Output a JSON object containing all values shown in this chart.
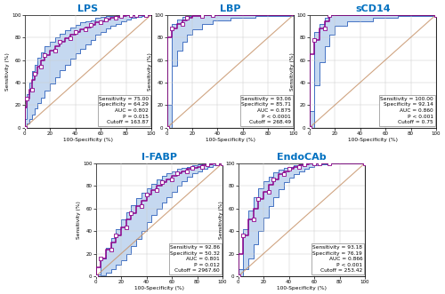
{
  "panels": [
    {
      "title": "LPS",
      "stats_text": "Sensitivity = 75.00\nSpecificity = 64.29\nAUC = 0.802\nP = 0.015\nCutoff = 163.87",
      "roc_x": [
        0,
        0,
        2,
        2,
        4,
        4,
        6,
        6,
        8,
        8,
        10,
        10,
        13,
        13,
        16,
        16,
        20,
        20,
        24,
        24,
        28,
        28,
        32,
        32,
        36,
        36,
        40,
        40,
        44,
        44,
        48,
        48,
        52,
        52,
        56,
        56,
        60,
        60,
        64,
        64,
        68,
        68,
        72,
        72,
        76,
        76,
        80,
        80,
        84,
        84,
        88,
        88,
        92,
        92,
        96,
        96,
        100
      ],
      "roc_y": [
        0,
        18,
        18,
        26,
        26,
        34,
        34,
        42,
        42,
        48,
        48,
        54,
        54,
        60,
        60,
        64,
        64,
        68,
        68,
        72,
        72,
        76,
        76,
        79,
        79,
        82,
        82,
        85,
        85,
        87,
        87,
        89,
        89,
        91,
        91,
        93,
        93,
        94,
        94,
        96,
        96,
        97,
        97,
        98,
        98,
        99,
        99,
        100,
        100,
        100,
        100,
        100,
        100,
        100,
        100,
        100,
        100
      ],
      "ci_upper_x": [
        0,
        2,
        4,
        6,
        8,
        10,
        13,
        16,
        20,
        24,
        28,
        32,
        36,
        40,
        44,
        48,
        52,
        56,
        60,
        64,
        68,
        72,
        76,
        80,
        84,
        88,
        92,
        96,
        100
      ],
      "ci_upper_y": [
        8,
        30,
        40,
        50,
        56,
        62,
        67,
        72,
        76,
        80,
        83,
        86,
        89,
        91,
        93,
        94,
        95,
        97,
        98,
        99,
        99,
        100,
        100,
        100,
        100,
        100,
        100,
        100,
        100
      ],
      "ci_lower_x": [
        0,
        2,
        4,
        6,
        8,
        10,
        13,
        16,
        20,
        24,
        28,
        32,
        36,
        40,
        44,
        48,
        52,
        56,
        60,
        64,
        68,
        72,
        76,
        80,
        84,
        88,
        92,
        96,
        100
      ],
      "ci_lower_y": [
        0,
        4,
        8,
        12,
        17,
        22,
        27,
        33,
        39,
        45,
        51,
        56,
        61,
        66,
        70,
        74,
        78,
        82,
        85,
        88,
        90,
        92,
        94,
        96,
        97,
        98,
        99,
        100,
        100
      ]
    },
    {
      "title": "LBP",
      "stats_text": "Sensitivity = 93.06\nSpecificity = 85.71\nAUC = 0.875\nP < 0.0001\nCutoff = 268.49",
      "roc_x": [
        0,
        0,
        4,
        4,
        8,
        8,
        12,
        12,
        16,
        16,
        20,
        20,
        28,
        28,
        36,
        36,
        100,
        100
      ],
      "roc_y": [
        0,
        80,
        80,
        88,
        88,
        92,
        92,
        95,
        95,
        97,
        97,
        99,
        99,
        100,
        100,
        100,
        100,
        100
      ],
      "ci_upper_x": [
        0,
        4,
        8,
        12,
        16,
        20,
        28,
        36,
        100
      ],
      "ci_upper_y": [
        20,
        92,
        96,
        98,
        99,
        100,
        100,
        100,
        100
      ],
      "ci_lower_x": [
        0,
        4,
        8,
        12,
        16,
        20,
        28,
        36,
        50,
        70,
        100
      ],
      "ci_lower_y": [
        0,
        55,
        68,
        76,
        82,
        87,
        92,
        95,
        97,
        99,
        100
      ]
    },
    {
      "title": "sCD14",
      "stats_text": "Sensitivity = 100.00\nSpecificity = 92.14\nAUC = 0.860\nP < 0.001\nCutoff = 0.75",
      "roc_x": [
        0,
        0,
        4,
        4,
        8,
        8,
        12,
        12,
        16,
        16,
        20,
        20,
        100,
        100
      ],
      "roc_y": [
        0,
        65,
        65,
        78,
        78,
        88,
        88,
        94,
        94,
        100,
        100,
        100,
        100,
        100
      ],
      "ci_upper_x": [
        0,
        4,
        8,
        12,
        16,
        20,
        100
      ],
      "ci_upper_y": [
        15,
        85,
        92,
        97,
        100,
        100,
        100
      ],
      "ci_lower_x": [
        0,
        4,
        8,
        12,
        16,
        20,
        30,
        50,
        70,
        100
      ],
      "ci_lower_y": [
        0,
        38,
        58,
        72,
        82,
        90,
        94,
        97,
        99,
        100
      ]
    },
    {
      "title": "I-FABP",
      "stats_text": "Sensitivity = 92.86\nSpecificity = 50.32\nAUC = 0.801\nP = 0.012\nCutoff = 2967.60",
      "roc_x": [
        0,
        0,
        4,
        4,
        8,
        8,
        12,
        12,
        16,
        16,
        20,
        20,
        24,
        24,
        28,
        28,
        32,
        32,
        36,
        36,
        40,
        40,
        44,
        44,
        48,
        48,
        52,
        52,
        56,
        56,
        60,
        60,
        64,
        64,
        68,
        68,
        72,
        72,
        76,
        76,
        80,
        80,
        84,
        84,
        88,
        88,
        92,
        92,
        96,
        96,
        100,
        100
      ],
      "roc_y": [
        0,
        8,
        8,
        16,
        16,
        24,
        24,
        30,
        30,
        36,
        36,
        43,
        43,
        50,
        50,
        56,
        56,
        62,
        62,
        67,
        67,
        72,
        72,
        76,
        76,
        80,
        80,
        83,
        83,
        86,
        86,
        89,
        89,
        91,
        91,
        93,
        93,
        95,
        95,
        96,
        96,
        97,
        97,
        98,
        98,
        99,
        99,
        100,
        100,
        100,
        100,
        100
      ],
      "ci_upper_x": [
        0,
        4,
        8,
        12,
        16,
        20,
        24,
        28,
        32,
        36,
        40,
        44,
        48,
        52,
        56,
        60,
        64,
        68,
        72,
        76,
        80,
        84,
        88,
        92,
        96,
        100
      ],
      "ci_upper_y": [
        2,
        16,
        25,
        34,
        42,
        50,
        57,
        63,
        69,
        74,
        78,
        82,
        86,
        89,
        91,
        93,
        95,
        96,
        97,
        98,
        99,
        100,
        100,
        100,
        100,
        100
      ],
      "ci_lower_x": [
        0,
        4,
        8,
        12,
        16,
        20,
        24,
        28,
        32,
        36,
        40,
        44,
        48,
        52,
        56,
        60,
        64,
        68,
        72,
        76,
        80,
        84,
        88,
        92,
        96,
        100
      ],
      "ci_lower_y": [
        0,
        1,
        3,
        6,
        10,
        14,
        20,
        27,
        33,
        40,
        48,
        54,
        60,
        65,
        70,
        75,
        80,
        84,
        88,
        91,
        93,
        95,
        97,
        98,
        99,
        100
      ]
    },
    {
      "title": "EndoCAb",
      "stats_text": "Sensitivity = 93.18\nSpecificity = 76.19\nAUC = 0.866\nP < 0.001\nCutoff = 253.42",
      "roc_x": [
        0,
        0,
        4,
        4,
        8,
        8,
        12,
        12,
        16,
        16,
        20,
        20,
        24,
        24,
        28,
        28,
        32,
        32,
        36,
        36,
        40,
        40,
        44,
        44,
        48,
        48,
        52,
        52,
        56,
        56,
        60,
        60,
        64,
        64,
        68,
        68,
        72,
        72,
        100,
        100
      ],
      "roc_y": [
        0,
        20,
        20,
        36,
        36,
        50,
        50,
        60,
        60,
        68,
        68,
        75,
        75,
        81,
        81,
        86,
        86,
        90,
        90,
        93,
        93,
        95,
        95,
        97,
        97,
        98,
        98,
        99,
        99,
        100,
        100,
        100,
        100,
        100,
        100,
        100,
        100,
        100,
        100,
        100
      ],
      "ci_upper_x": [
        0,
        4,
        8,
        12,
        16,
        20,
        24,
        28,
        32,
        36,
        40,
        44,
        48,
        52,
        56,
        60,
        64,
        68,
        72,
        100
      ],
      "ci_upper_y": [
        6,
        42,
        58,
        70,
        78,
        84,
        88,
        92,
        94,
        96,
        97,
        98,
        99,
        100,
        100,
        100,
        100,
        100,
        100,
        100
      ],
      "ci_lower_x": [
        0,
        4,
        8,
        12,
        16,
        20,
        24,
        28,
        32,
        36,
        40,
        44,
        48,
        52,
        56,
        60,
        64,
        68,
        72,
        100
      ],
      "ci_lower_y": [
        0,
        6,
        16,
        28,
        40,
        52,
        62,
        70,
        77,
        83,
        87,
        90,
        93,
        95,
        97,
        98,
        99,
        99,
        100,
        100
      ]
    }
  ],
  "roc_line_color": "#8B008B",
  "roc_marker_face": "#FFFFFF",
  "roc_marker_edge": "#8B008B",
  "ci_fill_color": "#C5D8F0",
  "ci_line_color": "#4472C4",
  "diagonal_color": "#C8956C",
  "title_color": "#0070C0",
  "stats_fontsize": 4.2,
  "title_fontsize": 8,
  "tick_fontsize": 4.0,
  "label_fontsize": 4.2,
  "bg_color": "#FFFFFF",
  "panel_bg": "#FFFFFF",
  "grid_color": "#CCCCCC"
}
